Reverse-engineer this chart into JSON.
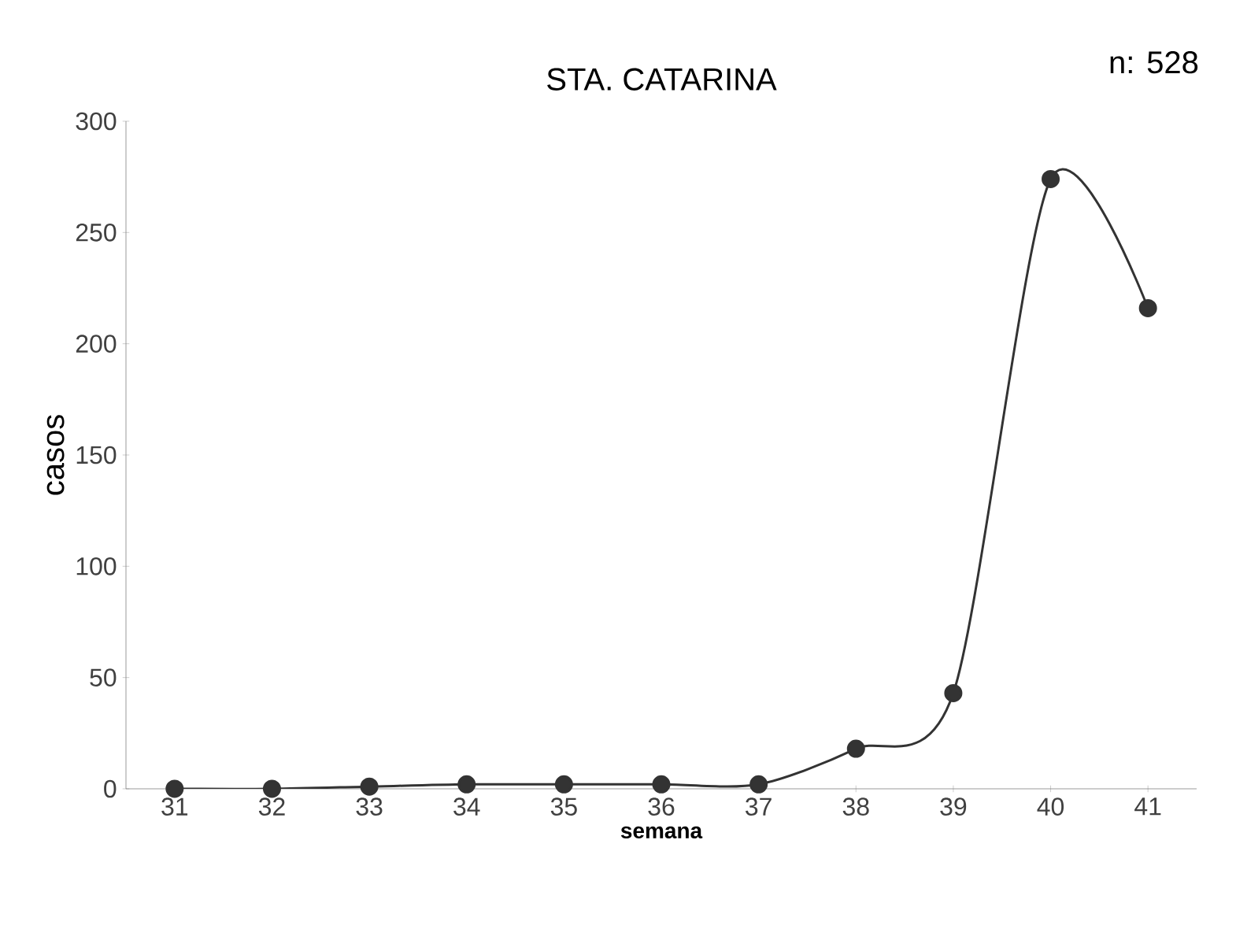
{
  "chart_data": {
    "type": "line",
    "title": "STA. CATARINA",
    "xlabel": "semana",
    "ylabel": "casos",
    "annotations": [
      "n: 528"
    ],
    "categories": [
      "31",
      "32",
      "33",
      "34",
      "35",
      "36",
      "37",
      "38",
      "39",
      "40",
      "41"
    ],
    "series": [
      {
        "color": "#333333",
        "values": [
          0,
          0,
          1,
          2,
          2,
          2,
          2,
          18,
          43,
          274,
          216
        ]
      }
    ],
    "ylim": [
      0,
      300
    ],
    "yticks": [
      0,
      50,
      100,
      150,
      200,
      250,
      300
    ],
    "marker": "circle",
    "line_style": "solid",
    "grid": false
  }
}
